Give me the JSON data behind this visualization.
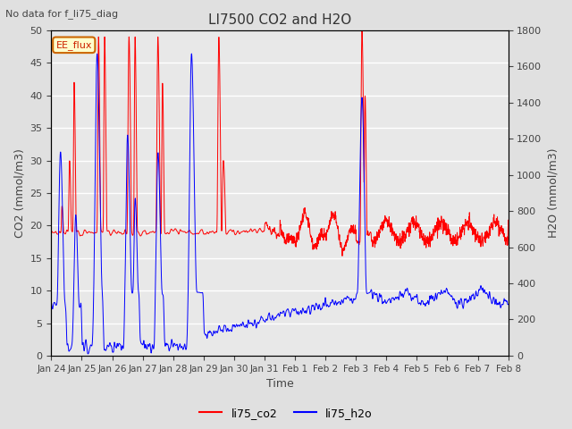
{
  "title": "LI7500 CO2 and H2O",
  "subtitle": "No data for f_li75_diag",
  "xlabel": "Time",
  "ylabel_left": "CO2 (mmol/m3)",
  "ylabel_right": "H2O (mmol/m3)",
  "ylim_left": [
    0,
    50
  ],
  "ylim_right": [
    0,
    1800
  ],
  "xtick_labels": [
    "Jan 24",
    "Jan 25",
    "Jan 26",
    "Jan 27",
    "Jan 28",
    "Jan 29",
    "Jan 30",
    "Jan 31",
    "Feb 1",
    "Feb 2",
    "Feb 3",
    "Feb 4",
    "Feb 5",
    "Feb 6",
    "Feb 7",
    "Feb 8"
  ],
  "legend_entries": [
    "li75_co2",
    "li75_h2o"
  ],
  "legend_colors": [
    "#ff0000",
    "#0000ff"
  ],
  "box_label": "EE_flux",
  "co2_color": "#ff0000",
  "h2o_color": "#0000ff",
  "background_color": "#e0e0e0",
  "plot_bg_color": "#e8e8e8",
  "grid_color": "#ffffff",
  "n_days": 15
}
